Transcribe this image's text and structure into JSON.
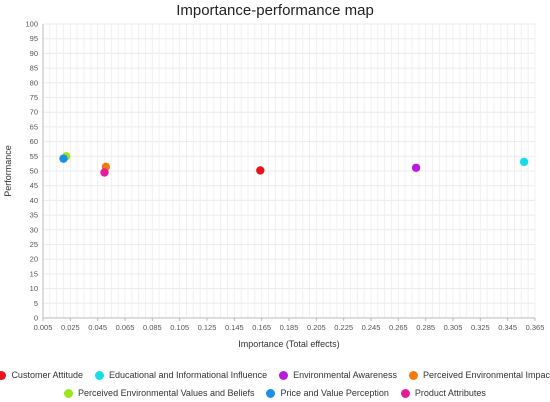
{
  "chart_data": {
    "type": "scatter",
    "title": "Importance-performance map",
    "xlabel": "Importance (Total effects)",
    "ylabel": "Performance",
    "xlim": [
      0.005,
      0.365
    ],
    "ylim": [
      0,
      100
    ],
    "x_ticks": [
      "0.005",
      "0.025",
      "0.045",
      "0.065",
      "0.085",
      "0.105",
      "0.125",
      "0.145",
      "0.165",
      "0.185",
      "0.205",
      "0.225",
      "0.245",
      "0.265",
      "0.285",
      "0.305",
      "0.325",
      "0.345",
      "0.365"
    ],
    "y_ticks": [
      "0",
      "5",
      "10",
      "15",
      "20",
      "25",
      "30",
      "35",
      "40",
      "45",
      "50",
      "55",
      "60",
      "65",
      "70",
      "75",
      "80",
      "85",
      "90",
      "95",
      "100"
    ],
    "grid": true,
    "legend_position": "bottom",
    "series": [
      {
        "name": "Customer Attitude",
        "color": "#e8141b",
        "x": 0.164,
        "y": 50.2
      },
      {
        "name": "Educational and Informational Influence",
        "color": "#18dde6",
        "x": 0.357,
        "y": 53.1
      },
      {
        "name": "Environmental Awareness",
        "color": "#b91ae0",
        "x": 0.278,
        "y": 51.1
      },
      {
        "name": "Perceived Environmental Impact",
        "color": "#f07a12",
        "x": 0.051,
        "y": 51.4
      },
      {
        "name": "Perceived Environmental Values and Beliefs",
        "color": "#9be61c",
        "x": 0.022,
        "y": 55.0
      },
      {
        "name": "Price and Value Perception",
        "color": "#1a8fe8",
        "x": 0.02,
        "y": 54.2
      },
      {
        "name": "Product Attributes",
        "color": "#e51a9c",
        "x": 0.05,
        "y": 49.5
      }
    ]
  }
}
